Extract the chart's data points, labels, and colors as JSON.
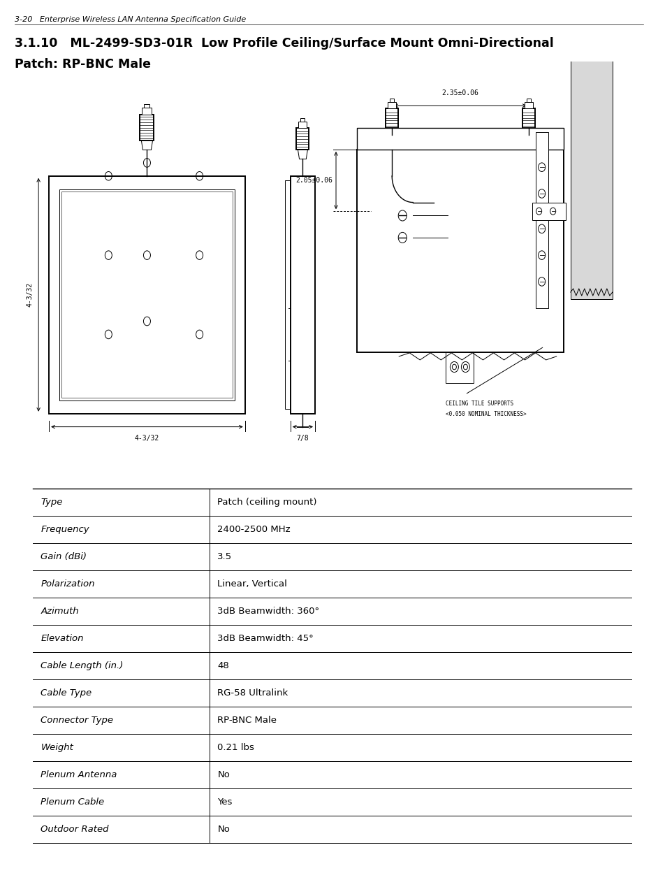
{
  "header_text": "3-20   Enterprise Wireless LAN Antenna Specification Guide",
  "section_title_line1": "3.1.10   ML-2499-SD3-01R  Low Profile Ceiling/Surface Mount Omni-Directional",
  "section_title_line2": "Patch: RP-BNC Male",
  "table_rows": [
    [
      "Type",
      "Patch (ceiling mount)"
    ],
    [
      "Frequency",
      "2400-2500 MHz"
    ],
    [
      "Gain (dBi)",
      "3.5"
    ],
    [
      "Polarization",
      "Linear, Vertical"
    ],
    [
      "Azimuth",
      "3dB Beamwidth: 360°"
    ],
    [
      "Elevation",
      "3dB Beamwidth: 45°"
    ],
    [
      "Cable Length (in.)",
      "48"
    ],
    [
      "Cable Type",
      "RG-58 Ultralink"
    ],
    [
      "Connector Type",
      "RP-BNC Male"
    ],
    [
      "Weight",
      "0.21 lbs"
    ],
    [
      "Plenum Antenna",
      "No"
    ],
    [
      "Plenum Cable",
      "Yes"
    ],
    [
      "Outdoor Rated",
      "No"
    ]
  ],
  "bg_color": "#ffffff",
  "text_color": "#000000",
  "header_fontsize": 8.0,
  "title_fontsize": 12.5,
  "table_fontsize": 9.5,
  "diagram_label_2_35": "2.35±0.06",
  "diagram_label_2_05": "2.05±0.06",
  "diagram_label_4_3_32_left": "4-3/32",
  "diagram_label_4_3_32_bottom": "4-3/32",
  "diagram_label_7_8": "7/8",
  "diagram_label_ceiling_line1": "CEILING TILE SUPPORTS",
  "diagram_label_ceiling_line2": "<0.050 NOMINAL THICKNESS>"
}
